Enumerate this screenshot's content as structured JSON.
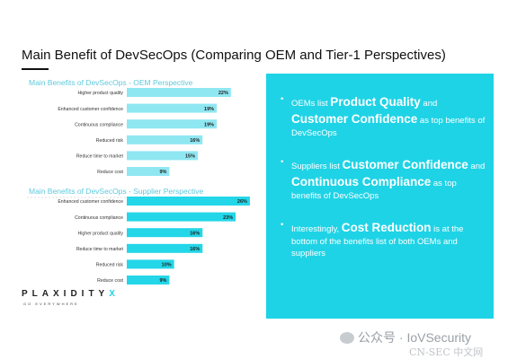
{
  "title": "Main Benefit of DevSecOps (Comparing OEM and Tier-1 Perspectives)",
  "chart_data": [
    {
      "type": "bar",
      "orientation": "horizontal",
      "title": "Main Benefits of DevSecOps - OEM Perspective",
      "categories": [
        "Higher product quality",
        "Enhanced customer confidence",
        "Continuous compliance",
        "Reduced risk",
        "Reduce time to market",
        "Reduce cost"
      ],
      "values": [
        22,
        19,
        19,
        16,
        15,
        9
      ],
      "value_labels": [
        "22%",
        "19%",
        "19%",
        "16%",
        "15%",
        "9%"
      ],
      "unit": "%",
      "bar_color": "#8fe7f2",
      "xlim": [
        0,
        30
      ]
    },
    {
      "type": "bar",
      "orientation": "horizontal",
      "title": "Main Benefits of DevSecOps - Supplier Perspective",
      "categories": [
        "Enhanced customer confidence",
        "Continuous compliance",
        "Higher product quality",
        "Reduce time to market",
        "Reduced risk",
        "Reduce cost"
      ],
      "values": [
        26,
        23,
        16,
        16,
        10,
        9
      ],
      "value_labels": [
        "26%",
        "23%",
        "16%",
        "16%",
        "10%",
        "9%"
      ],
      "unit": "%",
      "bar_color": "#23d6e8",
      "xlim": [
        0,
        30
      ]
    }
  ],
  "bullets": [
    {
      "a": "OEMs list ",
      "h1": "Product Quality",
      "b": " and ",
      "h2": "Customer Confidence",
      "c": " as top benefits of DevSecOps"
    },
    {
      "a": "Suppliers list ",
      "h1": "Customer Confidence",
      "b": " and ",
      "h2": "Continuous Compliance",
      "c": " as top benefits of DevSecOps"
    },
    {
      "a": "Interestingly, ",
      "h1": "Cost Reduction",
      "b": " is at the bottom of the benefits list of both OEMs and suppliers"
    }
  ],
  "logo": {
    "main": "PLAXIDITY",
    "accent": "X",
    "tagline": "GO EVERYWHERE"
  },
  "watermark": {
    "text": "公众号 · IoVSecurity",
    "sub": "CN-SEC 中文网"
  },
  "colors": {
    "accent": "#1fd3e6",
    "oem_bar": "#8fe7f2",
    "supplier_bar": "#23d6e8",
    "chart_title": "#5fc9dc"
  }
}
